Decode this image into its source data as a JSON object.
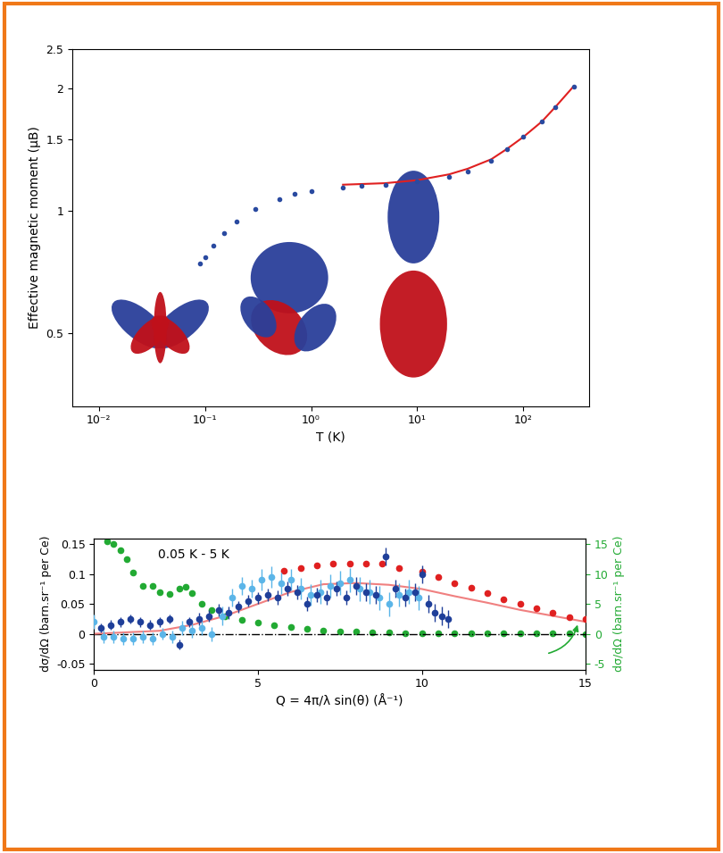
{
  "chart_data": [
    {
      "type": "scatter",
      "x_label": "T (K)",
      "y_label": "Effective magnetic moment (μB)",
      "log": true,
      "xlim": [
        0.0056,
        420
      ],
      "ylim": [
        0.33,
        2.5
      ],
      "xticks": [
        {
          "value": 0.01,
          "label": "10⁻²"
        },
        {
          "value": 0.1,
          "label": "10⁻¹"
        },
        {
          "value": 1,
          "label": "10⁰"
        },
        {
          "value": 10,
          "label": "10¹"
        },
        {
          "value": 100,
          "label": "10²"
        }
      ],
      "yticks": [
        0.5,
        1,
        1.5,
        2,
        2.5
      ],
      "series": [
        {
          "type": "scatter",
          "color": "#2a4aa0",
          "marker": "circle",
          "line_style": "none",
          "x": [
            0.09,
            0.1,
            0.12,
            0.15,
            0.2,
            0.3,
            0.5,
            0.7,
            1,
            2,
            3,
            5,
            10,
            20,
            30,
            50,
            70,
            100,
            150,
            200,
            300
          ],
          "values": [
            0.74,
            0.77,
            0.82,
            0.88,
            0.94,
            1.01,
            1.07,
            1.1,
            1.12,
            1.14,
            1.15,
            1.16,
            1.18,
            1.21,
            1.25,
            1.33,
            1.42,
            1.52,
            1.66,
            1.8,
            2.02
          ]
        },
        {
          "type": "line",
          "color": "#e02020",
          "marker": "none",
          "line_style": "solid",
          "x": [
            2,
            5,
            10,
            20,
            30,
            50,
            70,
            100,
            150,
            200,
            300
          ],
          "values": [
            1.16,
            1.17,
            1.19,
            1.23,
            1.27,
            1.34,
            1.42,
            1.52,
            1.66,
            1.8,
            2.03
          ]
        }
      ]
    },
    {
      "type": "scatter",
      "annotation": "0.05 K - 5 K",
      "x_label": "Q = 4π/λ sin(θ) (Å⁻¹)",
      "y_label": "dσ/dΩ (barn.sr⁻¹ per Ce)",
      "y2_label": "dσ/dΩ (barn.sr⁻¹ per Ce)",
      "y2_label_color": "#22aa33",
      "xlim": [
        0,
        15
      ],
      "ylim": [
        -0.06,
        0.16
      ],
      "y2lim": [
        -6,
        16
      ],
      "xticks": [
        0,
        5,
        10,
        15
      ],
      "yticks": [
        -0.05,
        0,
        0.05,
        0.1,
        0.15
      ],
      "y2ticks": [
        -5,
        0,
        5,
        10,
        15
      ],
      "series": [
        {
          "type": "line",
          "color": "#000000",
          "marker": "none",
          "line_style": "dashdot",
          "x": [
            0,
            15
          ],
          "values": [
            0,
            0
          ]
        },
        {
          "type": "line",
          "color": "#f08080",
          "marker": "none",
          "line_style": "solid",
          "x": [
            0,
            2,
            3,
            4,
            5,
            6,
            7,
            8,
            9,
            10,
            11,
            12,
            13,
            14,
            15
          ],
          "values": [
            0,
            0.005,
            0.015,
            0.03,
            0.05,
            0.07,
            0.083,
            0.085,
            0.082,
            0.075,
            0.063,
            0.052,
            0.04,
            0.03,
            0.02
          ]
        },
        {
          "type": "scatter",
          "color": "#e02020",
          "marker": "circle",
          "line_style": "none",
          "x": [
            5.8,
            6.3,
            6.8,
            7.3,
            7.8,
            8.3,
            8.8,
            9.3,
            10,
            10.5,
            11,
            11.5,
            12,
            12.5,
            13,
            13.5,
            14,
            14.5,
            15
          ],
          "values": [
            0.105,
            0.11,
            0.115,
            0.117,
            0.118,
            0.118,
            0.118,
            0.11,
            0.104,
            0.095,
            0.085,
            0.077,
            0.068,
            0.058,
            0.05,
            0.042,
            0.035,
            0.028,
            0.025
          ]
        },
        {
          "type": "scatter",
          "color": "#5bb5e8",
          "marker": "circle",
          "line_style": "none",
          "x": [
            0.0,
            0.3,
            0.6,
            0.9,
            1.2,
            1.5,
            1.8,
            2.1,
            2.4,
            2.7,
            3.0,
            3.3,
            3.6,
            3.9,
            4.2,
            4.5,
            4.8,
            5.1,
            5.4,
            5.7,
            6.0,
            6.3,
            6.6,
            6.9,
            7.2,
            7.5,
            7.8,
            8.1,
            8.4,
            8.7,
            9.0,
            9.3,
            9.6,
            9.9
          ],
          "values": [
            0.02,
            -0.005,
            -0.005,
            -0.008,
            -0.008,
            -0.005,
            -0.008,
            0.0,
            -0.005,
            0.01,
            0.005,
            0.01,
            0.0,
            0.03,
            0.06,
            0.08,
            0.075,
            0.09,
            0.095,
            0.085,
            0.09,
            0.075,
            0.065,
            0.07,
            0.08,
            0.085,
            0.09,
            0.075,
            0.07,
            0.06,
            0.05,
            0.065,
            0.07,
            0.06
          ],
          "errors": [
            0.012,
            0.01,
            0.01,
            0.01,
            0.01,
            0.01,
            0.01,
            0.01,
            0.01,
            0.012,
            0.012,
            0.012,
            0.012,
            0.015,
            0.015,
            0.015,
            0.015,
            0.018,
            0.018,
            0.018,
            0.018,
            0.018,
            0.018,
            0.02,
            0.02,
            0.02,
            0.02,
            0.02,
            0.02,
            0.02,
            0.02,
            0.02,
            0.02,
            0.02
          ]
        },
        {
          "type": "scatter",
          "color": "#1f3f99",
          "marker": "circle",
          "line_style": "none",
          "x": [
            0.2,
            0.5,
            0.8,
            1.1,
            1.4,
            1.7,
            2.0,
            2.3,
            2.6,
            2.9,
            3.2,
            3.5,
            3.8,
            4.1,
            4.4,
            4.7,
            5.0,
            5.3,
            5.6,
            5.9,
            6.2,
            6.5,
            6.8,
            7.1,
            7.4,
            7.7,
            8.0,
            8.3,
            8.6,
            8.9,
            9.2,
            9.5,
            9.8,
            10.0,
            10.2,
            10.4,
            10.6,
            10.8
          ],
          "values": [
            0.01,
            0.015,
            0.02,
            0.025,
            0.02,
            0.015,
            0.02,
            0.025,
            -0.018,
            0.02,
            0.025,
            0.03,
            0.04,
            0.035,
            0.045,
            0.055,
            0.06,
            0.065,
            0.06,
            0.075,
            0.07,
            0.05,
            0.065,
            0.06,
            0.075,
            0.06,
            0.08,
            0.07,
            0.065,
            0.13,
            0.075,
            0.06,
            0.07,
            0.1,
            0.05,
            0.035,
            0.03,
            0.025
          ],
          "errors": [
            0.008,
            0.008,
            0.008,
            0.008,
            0.008,
            0.008,
            0.008,
            0.008,
            0.008,
            0.008,
            0.01,
            0.01,
            0.01,
            0.01,
            0.01,
            0.01,
            0.01,
            0.01,
            0.012,
            0.012,
            0.012,
            0.012,
            0.012,
            0.012,
            0.012,
            0.012,
            0.015,
            0.015,
            0.015,
            0.015,
            0.015,
            0.015,
            0.015,
            0.015,
            0.015,
            0.015,
            0.015,
            0.015
          ]
        },
        {
          "type": "scatter",
          "axis": "y2",
          "color": "#22aa33",
          "marker": "circle",
          "line_style": "none",
          "x": [
            0.4,
            0.6,
            0.8,
            1.0,
            1.2,
            1.5,
            1.8,
            2.0,
            2.3,
            2.6,
            2.8,
            3.0,
            3.3,
            3.6,
            4.0,
            4.5,
            5.0,
            5.5,
            6.0,
            6.5,
            7.0,
            7.5,
            8.0,
            8.5,
            9.0,
            9.5,
            10.0,
            10.5,
            11.0,
            11.5,
            12.0,
            12.5,
            13.0,
            13.5,
            14.0,
            14.5,
            15.0
          ],
          "values": [
            15.5,
            15,
            14,
            12.5,
            10.3,
            8,
            8,
            7,
            6.6,
            7.5,
            7.8,
            6.8,
            5,
            4,
            2.9,
            2.3,
            1.9,
            1.4,
            1.1,
            0.8,
            0.6,
            0.45,
            0.35,
            0.25,
            0.2,
            0.15,
            0.1,
            0.08,
            0.06,
            0.05,
            0.04,
            0.03,
            0.02,
            0.02,
            0.01,
            0.01,
            0.0
          ]
        }
      ]
    }
  ]
}
